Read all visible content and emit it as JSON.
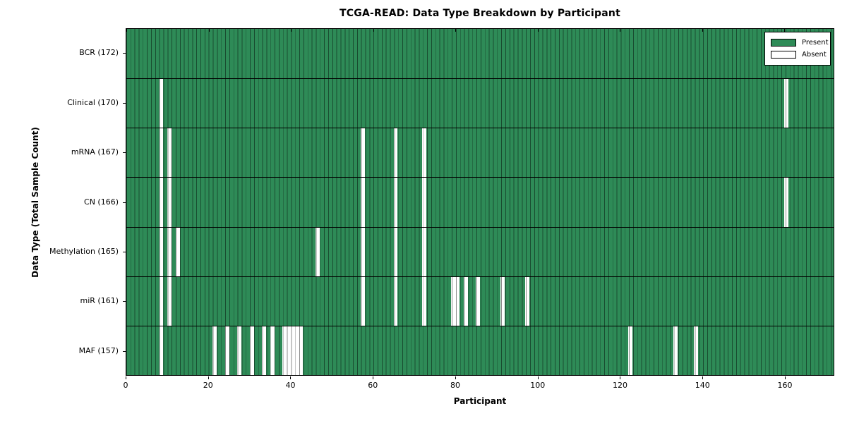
{
  "title": "TCGA-READ: Data Type Breakdown by Participant",
  "colors": {
    "present": "#2e8b57",
    "absent": "#ffffff",
    "edge": "#000000",
    "background": "#ffffff"
  },
  "chart_data": {
    "type": "heatmap",
    "title": "TCGA-READ: Data Type Breakdown by Participant",
    "xlabel": "Participant",
    "ylabel": "Data Type (Total Sample Count)",
    "x_range": [
      0,
      172
    ],
    "n_participants": 172,
    "n_rows": 7,
    "grid": "cell-edges",
    "legend_position": "upper-right-inside",
    "legend": [
      {
        "label": "Present",
        "color": "#2e8b57"
      },
      {
        "label": "Absent",
        "color": "#ffffff"
      }
    ],
    "x_ticks": [
      0,
      20,
      40,
      60,
      80,
      100,
      120,
      140,
      160
    ],
    "x_tick_labels": [
      "0",
      "20",
      "40",
      "60",
      "80",
      "100",
      "120",
      "140",
      "160"
    ],
    "rows": [
      {
        "label": "BCR (172)",
        "data_type": "BCR",
        "total": 172,
        "absent_participants": []
      },
      {
        "label": "Clinical (170)",
        "data_type": "Clinical",
        "total": 170,
        "absent_participants": [
          8,
          160
        ]
      },
      {
        "label": "mRNA (167)",
        "data_type": "mRNA",
        "total": 167,
        "absent_participants": [
          8,
          10,
          57,
          65,
          72
        ]
      },
      {
        "label": "CN (166)",
        "data_type": "CN",
        "total": 166,
        "absent_participants": [
          8,
          10,
          57,
          65,
          72,
          160
        ]
      },
      {
        "label": "Methylation (165)",
        "data_type": "Methylation",
        "total": 165,
        "absent_participants": [
          8,
          10,
          12,
          46,
          57,
          65,
          72
        ]
      },
      {
        "label": "miR (161)",
        "data_type": "miR",
        "total": 161,
        "absent_participants": [
          8,
          10,
          57,
          65,
          72,
          79,
          80,
          82,
          85,
          91,
          97
        ]
      },
      {
        "label": "MAF (157)",
        "data_type": "MAF",
        "total": 157,
        "absent_participants": [
          8,
          21,
          24,
          27,
          30,
          33,
          35,
          38,
          39,
          40,
          41,
          42,
          122,
          133,
          138
        ]
      }
    ]
  }
}
